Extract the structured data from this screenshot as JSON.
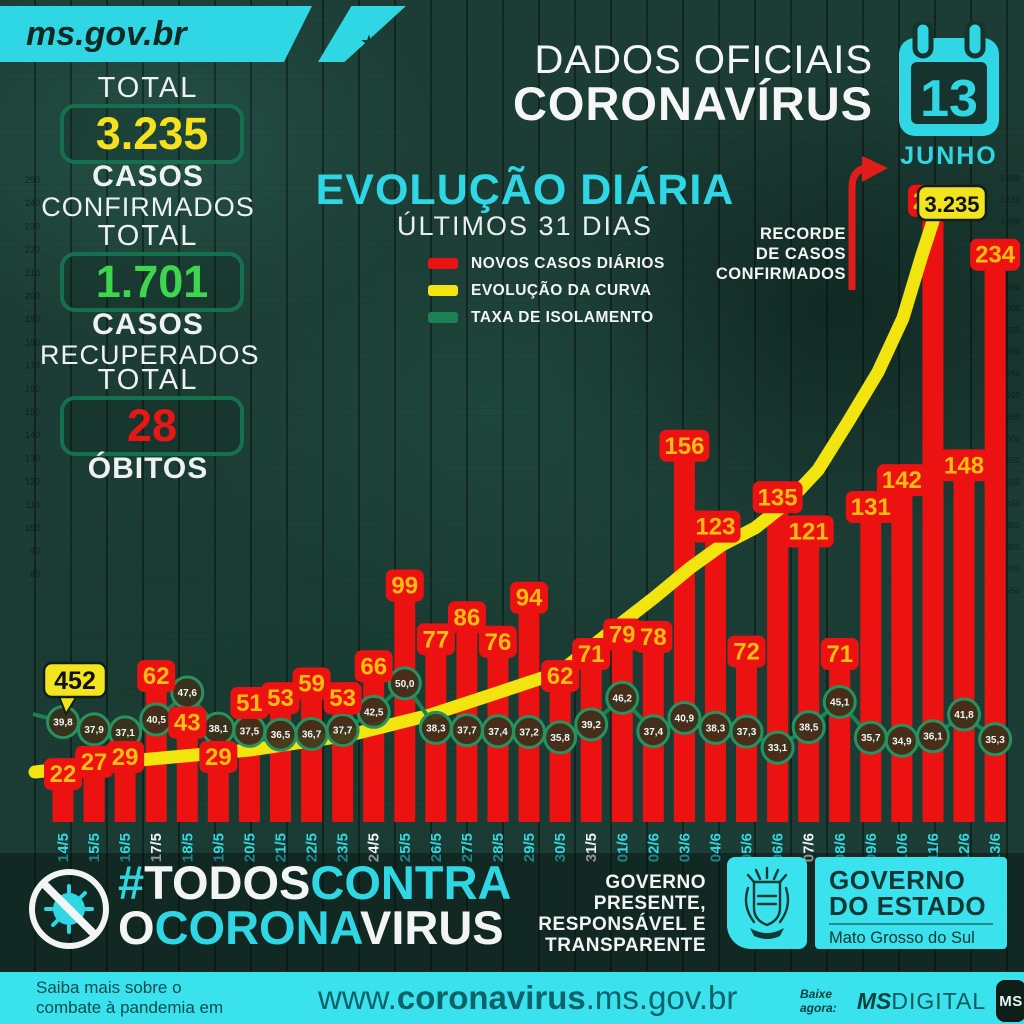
{
  "header": {
    "logo_text": "ms.gov.br",
    "logo_star": "★",
    "title_line1": "DADOS OFICIAIS",
    "title_line2": "CORONAVÍRUS",
    "calendar_day": "13",
    "calendar_month": "JUNHO"
  },
  "stats": [
    {
      "label": "TOTAL",
      "value": "3.235",
      "value_color": "#f6e11c",
      "sub_bold": "CASOS",
      "sub_light": "CONFIRMADOS"
    },
    {
      "label": "TOTAL",
      "value": "1.701",
      "value_color": "#3fd64f",
      "sub_bold": "CASOS",
      "sub_light": "RECUPERADOS"
    },
    {
      "label": "TOTAL",
      "value": "28",
      "value_color": "#ea1616",
      "sub_bold": "ÓBITOS",
      "sub_light": ""
    }
  ],
  "chart_data": {
    "type": "bar",
    "title": "EVOLUÇÃO DIÁRIA",
    "subtitle": "ÚLTIMOS 31 DIAS",
    "categories": [
      "14/5",
      "15/5",
      "16/5",
      "17/5",
      "18/5",
      "19/5",
      "20/5",
      "21/5",
      "22/5",
      "23/5",
      "24/5",
      "25/5",
      "26/5",
      "27/5",
      "28/5",
      "29/5",
      "30/5",
      "31/5",
      "01/6",
      "02/6",
      "03/6",
      "04/6",
      "05/6",
      "06/6",
      "07/6",
      "08/6",
      "09/6",
      "10/6",
      "11/6",
      "12/6",
      "13/6"
    ],
    "white_label_dates": [
      "17/5",
      "24/5",
      "31/5",
      "07/6"
    ],
    "series": [
      {
        "name": "NOVOS CASOS DIÁRIOS",
        "type": "bar",
        "color": "#ed1212",
        "values": [
          22,
          27,
          29,
          62,
          43,
          29,
          51,
          53,
          59,
          53,
          66,
          99,
          77,
          86,
          76,
          94,
          62,
          71,
          79,
          78,
          156,
          123,
          72,
          135,
          121,
          71,
          131,
          142,
          256,
          148,
          234
        ]
      },
      {
        "name": "EVOLUÇÃO DA CURVA",
        "type": "line",
        "color": "#f2e40e",
        "start_label": "452",
        "end_label": "3.235",
        "values": [
          452,
          479,
          508,
          570,
          613,
          642,
          693,
          746,
          805,
          858,
          924,
          1023,
          1100,
          1186,
          1262,
          1356,
          1418,
          1489,
          1568,
          1646,
          1802,
          1925,
          1997,
          2132,
          2253,
          2324,
          2455,
          2597,
          2853,
          3001,
          3235
        ]
      },
      {
        "name": "TAXA DE ISOLAMENTO",
        "type": "line",
        "color": "#1d8153",
        "values_display": [
          "39,8",
          "37,9",
          "37,1",
          "40,5",
          "47,6",
          "38,1",
          "37,5",
          "36,5",
          "36,7",
          "37,7",
          "42,5",
          "50,0",
          "38,3",
          "37,7",
          "37,4",
          "37,2",
          "35,8",
          "39,2",
          "46,2",
          "37,4",
          "40,9",
          "38,3",
          "37,3",
          "33,1",
          "38,5",
          "45,1",
          "35,7",
          "34,9",
          "36,1",
          "41,8",
          "35,3"
        ]
      }
    ],
    "annotation_record": {
      "lines": [
        "RECORDE",
        "DE CASOS",
        "CONFIRMADOS"
      ],
      "value": 256,
      "date": "11/6"
    },
    "left_axis_ticks": [
      "250",
      "240",
      "230",
      "220",
      "210",
      "200",
      "190",
      "180",
      "170",
      "160",
      "150",
      "140",
      "130",
      "120",
      "110",
      "100",
      "90",
      "80"
    ],
    "right_axis_ticks": [
      "3.200",
      "3.150",
      "3.100",
      "3.050",
      "3.000",
      "2.950",
      "2.900",
      "2.850",
      "2.800",
      "2.750",
      "2.700",
      "2.650",
      "2.600",
      "2.550",
      "2.500",
      "2.450",
      "2.400",
      "2.350",
      "2.300",
      "2.250"
    ],
    "legend_position": "top-center",
    "grid": true
  },
  "footer": {
    "hashtag_line1": [
      {
        "t": "#",
        "c": "c"
      },
      {
        "t": "TODOS",
        "c": "w"
      },
      {
        "t": "CONTRA",
        "c": "c"
      }
    ],
    "hashtag_line2": [
      {
        "t": "O",
        "c": "w"
      },
      {
        "t": "CORONA",
        "c": "c"
      },
      {
        "t": "VIRUS",
        "c": "w"
      }
    ],
    "gov_lines": [
      "GOVERNO",
      "PRESENTE,",
      "RESPONSÁVEL E",
      "TRANSPARENTE"
    ],
    "estado_line1": "GOVERNO",
    "estado_line2": "DO ESTADO",
    "estado_line3": "Mato Grosso do Sul",
    "saiba_line1": "Saiba mais sobre o",
    "saiba_line2": "combate à pandemia em",
    "url_pre": "www.",
    "url_bold": "coronavirus",
    "url_post": ".ms.gov.br",
    "baixe": "Baixe agora:",
    "msdigital_ms": "MS",
    "msdigital_rest": "DIGITAL",
    "badge_text": "MS"
  },
  "colors": {
    "cyan": "#2fd6e3",
    "bar_red": "#ed1212",
    "bar_label": "#ffbe0d",
    "curve_yellow": "#f2e40e",
    "iso_green": "#1d8153",
    "box_border_green": "#15714d",
    "bubble_yellow": "#f2e41d"
  }
}
